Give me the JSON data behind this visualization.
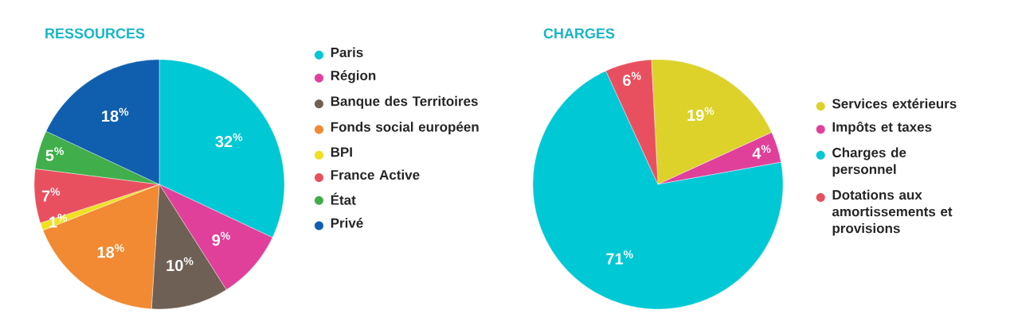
{
  "chart_data": [
    {
      "type": "pie",
      "title": "RESSOURCES",
      "categories": [
        "Paris",
        "Région",
        "Banque des Territoires",
        "Fonds social européen",
        "BPI",
        "France Active",
        "État",
        "Privé"
      ],
      "values": [
        32,
        9,
        10,
        18,
        1,
        7,
        5,
        18
      ],
      "colors": [
        "#00c8d4",
        "#e0409a",
        "#6f6055",
        "#f18a32",
        "#f0e020",
        "#e9505f",
        "#40ae4a",
        "#0f5fae"
      ],
      "value_labels": [
        "32$^{%}$",
        "9$^{%}$",
        "10$^{%}$",
        "18$^{%}$",
        "1$^{%}$",
        "7$^{%}$",
        "5$^{%}$",
        "18$^{%}$"
      ],
      "legend": "right"
    },
    {
      "type": "pie",
      "title": "CHARGES",
      "categories": [
        "Services extérieurs",
        "Impôts et taxes",
        "Charges de personnel",
        "Dotations aux amortissements et provisions"
      ],
      "values": [
        19,
        4,
        71,
        6
      ],
      "colors": [
        "#dcd22a",
        "#e0409a",
        "#00c8d4",
        "#e9505f"
      ],
      "value_labels": [
        "19$^{%}$",
        "4$^{%}$",
        "71$^{%}$",
        "6$^{%}$"
      ],
      "legend": "right"
    }
  ]
}
